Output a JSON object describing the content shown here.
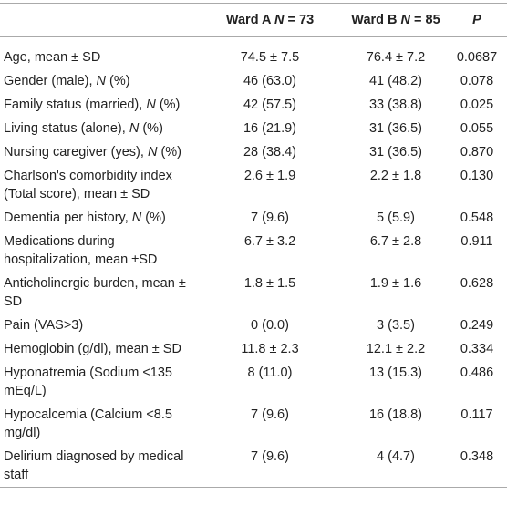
{
  "table": {
    "columns": [
      "Ward A N = 73",
      "Ward B N = 85",
      "P"
    ],
    "rows": [
      [
        "Age, mean ± SD",
        "74.5 ± 7.5",
        "76.4 ± 7.2",
        "0.0687"
      ],
      [
        "Gender (male), N (%)",
        "46 (63.0)",
        "41 (48.2)",
        "0.078"
      ],
      [
        "Family status (married), N (%)",
        "42 (57.5)",
        "33 (38.8)",
        "0.025"
      ],
      [
        "Living status (alone), N (%)",
        "16 (21.9)",
        "31 (36.5)",
        "0.055"
      ],
      [
        "Nursing caregiver (yes), N (%)",
        "28 (38.4)",
        "31 (36.5)",
        "0.870"
      ],
      [
        "Charlson's comorbidity index (Total score), mean ± SD",
        "2.6 ± 1.9",
        "2.2 ± 1.8",
        "0.130"
      ],
      [
        "Dementia per history, N (%)",
        "7 (9.6)",
        "5 (5.9)",
        "0.548"
      ],
      [
        "Medications during hospitalization, mean ±SD",
        "6.7 ± 3.2",
        "6.7 ± 2.8",
        "0.911"
      ],
      [
        "Anticholinergic burden, mean ± SD",
        "1.8 ± 1.5",
        "1.9 ± 1.6",
        "0.628"
      ],
      [
        "Pain (VAS>3)",
        "0 (0.0)",
        "3 (3.5)",
        "0.249"
      ],
      [
        "Hemoglobin (g/dl), mean ± SD",
        "11.8 ± 2.3",
        "12.1 ± 2.2",
        "0.334"
      ],
      [
        "Hyponatremia (Sodium <135 mEq/L)",
        "8 (11.0)",
        "13 (15.3)",
        "0.486"
      ],
      [
        "Hypocalcemia (Calcium <8.5 mg/dl)",
        "7 (9.6)",
        "16 (18.8)",
        "0.117"
      ],
      [
        "Delirium diagnosed by medical staff",
        "7 (9.6)",
        "4 (4.7)",
        "0.348"
      ]
    ]
  }
}
